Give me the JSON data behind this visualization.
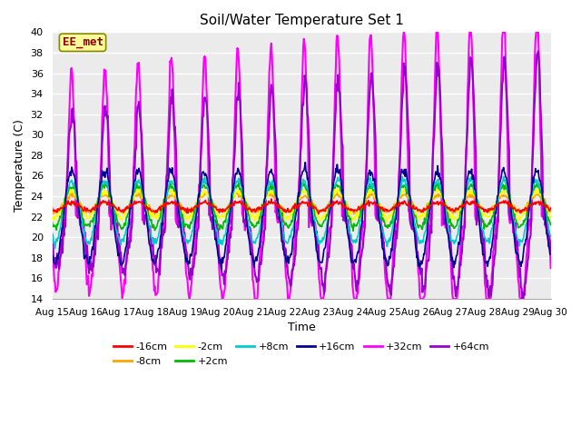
{
  "title": "Soil/Water Temperature Set 1",
  "xlabel": "Time",
  "ylabel": "Temperature (C)",
  "ylim": [
    14,
    40
  ],
  "yticks": [
    14,
    16,
    18,
    20,
    22,
    24,
    26,
    28,
    30,
    32,
    34,
    36,
    38,
    40
  ],
  "xtick_labels": [
    "Aug 15",
    "Aug 16",
    "Aug 17",
    "Aug 18",
    "Aug 19",
    "Aug 20",
    "Aug 21",
    "Aug 22",
    "Aug 23",
    "Aug 24",
    "Aug 25",
    "Aug 26",
    "Aug 27",
    "Aug 28",
    "Aug 29",
    "Aug 30"
  ],
  "annotation_text": "EE_met",
  "annotation_color": "#8B0000",
  "annotation_bg": "#FFFF99",
  "plot_bg_color": "#EBEBEB",
  "fig_bg_color": "#FFFFFF",
  "grid_color": "#FFFFFF",
  "series": {
    "-16cm": {
      "color": "#FF0000",
      "lw": 1.2,
      "zorder": 5
    },
    "-8cm": {
      "color": "#FFA500",
      "lw": 1.2,
      "zorder": 4
    },
    "-2cm": {
      "color": "#FFFF00",
      "lw": 1.2,
      "zorder": 4
    },
    "+2cm": {
      "color": "#00BB00",
      "lw": 1.2,
      "zorder": 4
    },
    "+8cm": {
      "color": "#00CCCC",
      "lw": 1.2,
      "zorder": 4
    },
    "+16cm": {
      "color": "#000090",
      "lw": 1.2,
      "zorder": 4
    },
    "+32cm": {
      "color": "#FF00FF",
      "lw": 1.5,
      "zorder": 3
    },
    "+64cm": {
      "color": "#9900CC",
      "lw": 1.5,
      "zorder": 3
    }
  },
  "legend_order": [
    "-16cm",
    "-8cm",
    "-2cm",
    "+2cm",
    "+8cm",
    "+16cm",
    "+32cm",
    "+64cm"
  ]
}
